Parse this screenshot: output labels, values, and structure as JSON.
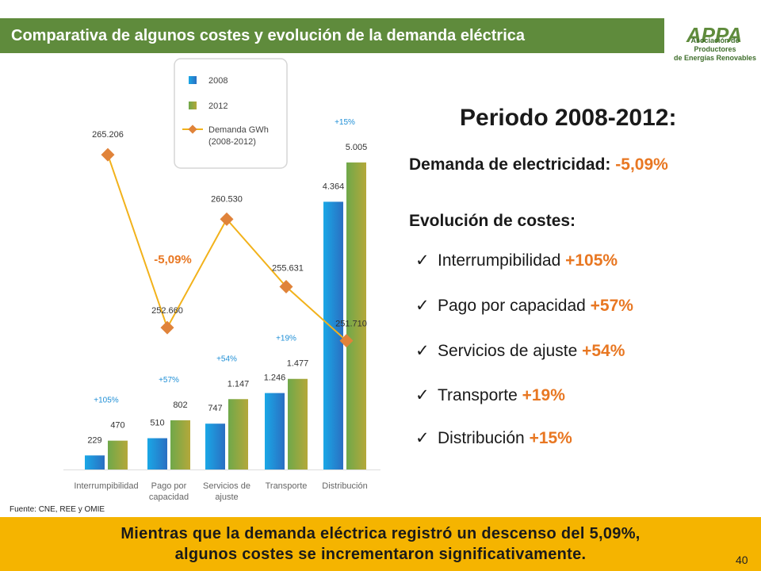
{
  "header": {
    "title": "Comparativa de algunos costes y evolución de la demanda eléctrica"
  },
  "logo": {
    "text": "APPA",
    "subtitle_line1": "Asociación de Productores",
    "subtitle_line2": "de Energías Renovables"
  },
  "chart_data": {
    "type": "bar",
    "categories": [
      "Interrumpibilidad",
      "Pago por capacidad",
      "Servicios de ajuste",
      "Transporte",
      "Distribución"
    ],
    "series": [
      {
        "name": "2008",
        "values": [
          229,
          510,
          747,
          1246,
          4364
        ],
        "labels": [
          "229",
          "510",
          "747",
          "1.246",
          "4.364"
        ],
        "color": "#1f8fd6"
      },
      {
        "name": "2012",
        "values": [
          470,
          802,
          1147,
          1477,
          5005
        ],
        "labels": [
          "470",
          "802",
          "1.147",
          "1.477",
          "5.005"
        ],
        "color": "#8a9b3a"
      }
    ],
    "growth_labels": [
      "+105%",
      "+57%",
      "+54%",
      "+19%",
      "+15%"
    ],
    "line_series": {
      "name": "Demanda GWh (2008-2012)",
      "values": [
        265206,
        252660,
        260530,
        255631,
        251710
      ],
      "labels": [
        "265.206",
        "252.660",
        "260.530",
        "255.631",
        "251.710"
      ],
      "color": "#f2b21b",
      "marker_color": "#e0833a"
    },
    "line_annotation": "-5,09%",
    "legend": [
      "2008",
      "2012",
      "Demanda GWh",
      "(2008-2012)"
    ],
    "legend_position": "top-center",
    "ylim": [
      0,
      5500
    ],
    "grid": false
  },
  "panel": {
    "period_title": "Periodo 2008-2012:",
    "demand_label": "Demanda de electricidad:",
    "demand_value": "-5,09%",
    "evolution_title": "Evolución de costes:",
    "items": [
      {
        "label": "Interrumpibilidad",
        "pct": "+105%"
      },
      {
        "label": "Pago por capacidad",
        "pct": "+57%"
      },
      {
        "label": "Servicios de ajuste",
        "pct": "+54%"
      },
      {
        "label": "Transporte",
        "pct": "+19%"
      },
      {
        "label": "Distribución",
        "pct": "+15%"
      }
    ],
    "check_icon": "✓"
  },
  "source": "Fuente: CNE, REE y OMIE",
  "footer": {
    "line1": "Mientras que la demanda eléctrica registró un descenso del 5,09%,",
    "line2": "algunos costes se incrementaron significativamente."
  },
  "page_number": "40",
  "colors": {
    "header_bg": "#5f8b3c",
    "footer_bg": "#f5b400",
    "accent_orange": "#e87722"
  }
}
